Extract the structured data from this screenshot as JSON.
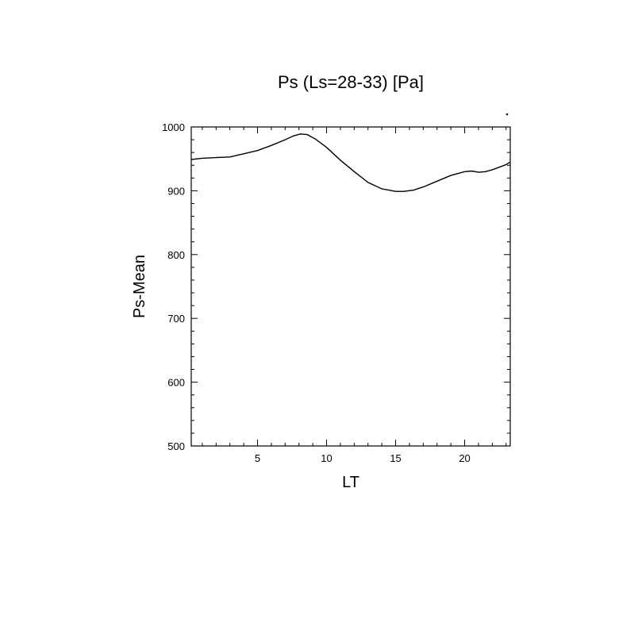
{
  "chart_data": {
    "type": "line",
    "title": "Ps (Ls=28-33) [Pa]",
    "xlabel": "LT",
    "ylabel": "Ps-Mean",
    "xlim": [
      0.2,
      23.3
    ],
    "ylim": [
      500,
      1000
    ],
    "x_ticks": [
      5,
      10,
      15,
      20
    ],
    "y_ticks": [
      500,
      600,
      700,
      800,
      900,
      1000
    ],
    "grid": false,
    "series": [
      {
        "x": [
          0.2,
          1,
          2,
          3,
          4,
          5,
          6,
          7,
          7.6,
          8.1,
          8.6,
          9.2,
          10,
          11,
          12,
          13,
          14,
          15,
          15.6,
          16.3,
          17,
          18,
          19,
          20,
          20.5,
          21,
          21.5,
          22,
          22.5,
          23,
          23.3
        ],
        "values": [
          949,
          951,
          952,
          953,
          958,
          963,
          971,
          980,
          986,
          989,
          988,
          981,
          968,
          948,
          930,
          913,
          903,
          899,
          899,
          901,
          906,
          915,
          924,
          930,
          931,
          929,
          930,
          933,
          937,
          941,
          945
        ]
      }
    ],
    "color": "#000000"
  }
}
